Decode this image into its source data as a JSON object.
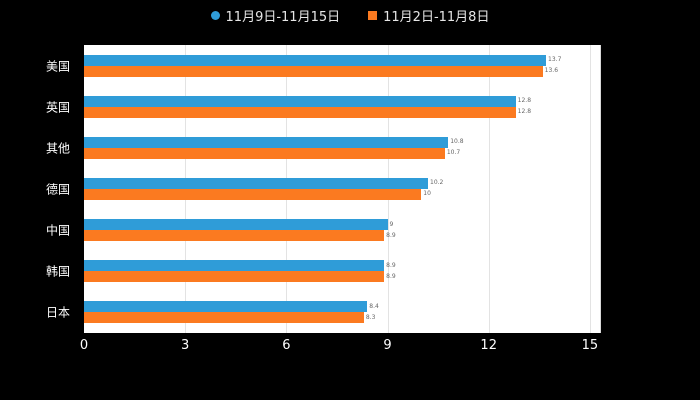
{
  "legend": {
    "items": [
      {
        "label": "11月9日-11月15日",
        "marker": "circle-icon",
        "color": "#2F9CD8"
      },
      {
        "label": "11月2日-11月8日",
        "marker": "square-icon",
        "color": "#FB7A20"
      }
    ]
  },
  "colors": {
    "background": "#000000",
    "plot_background": "#FFFFFF",
    "grid": "#E3E3E3",
    "axis_text": "#FFFFFF",
    "series_blue": "#2F9CD8",
    "series_orange": "#FB7A20"
  },
  "chart_data": {
    "type": "bar",
    "orientation": "horizontal",
    "title": "",
    "xlabel": "",
    "ylabel": "",
    "categories": [
      "美国",
      "英国",
      "其他",
      "德国",
      "中国",
      "韩国",
      "日本"
    ],
    "series": [
      {
        "name": "11月9日-11月15日",
        "color": "#2F9CD8",
        "values": [
          13.7,
          12.8,
          10.8,
          10.2,
          9.0,
          8.9,
          8.4
        ]
      },
      {
        "name": "11月2日-11月8日",
        "color": "#FB7A20",
        "values": [
          13.6,
          12.8,
          10.7,
          10.0,
          8.9,
          8.9,
          8.3
        ]
      }
    ],
    "x_ticks": [
      0,
      3,
      6,
      9,
      12,
      15
    ],
    "xlim": [
      0,
      15.3
    ],
    "grid": true,
    "legend_position": "top"
  }
}
